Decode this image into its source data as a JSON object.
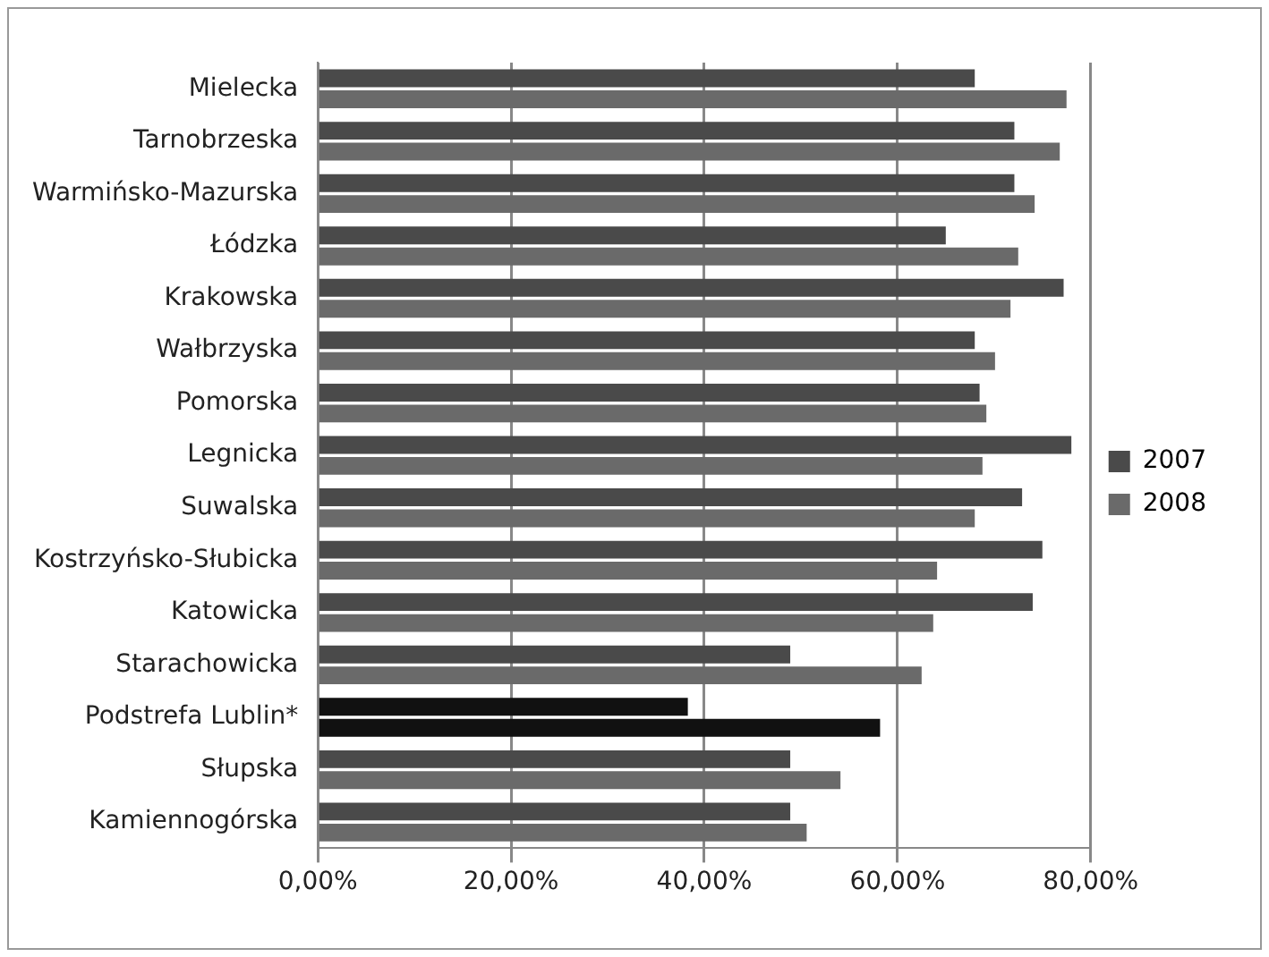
{
  "chart_data": {
    "type": "bar",
    "orientation": "horizontal",
    "categories": [
      "Mielecka",
      "Tarnobrzeska",
      "Warmińsko-Mazurska",
      "Łódzka",
      "Krakowska",
      "Wałbrzyska",
      "Pomorska",
      "Legnicka",
      "Suwalska",
      "Kostrzyńsko-Słubicka",
      "Katowicka",
      "Starachowicka",
      "Podstrefa Lublin*",
      "Słupska",
      "Kamiennogórska"
    ],
    "series": [
      {
        "name": "2007",
        "color": "#4a4a4a",
        "colors": [
          "#4a4a4a",
          "#4a4a4a",
          "#4a4a4a",
          "#4a4a4a",
          "#4a4a4a",
          "#4a4a4a",
          "#4a4a4a",
          "#4a4a4a",
          "#4a4a4a",
          "#4a4a4a",
          "#4a4a4a",
          "#4a4a4a",
          "#111111",
          "#4a4a4a",
          "#4a4a4a"
        ],
        "values": [
          68.0,
          72.1,
          72.1,
          65.0,
          77.2,
          68.0,
          68.5,
          78.0,
          72.9,
          75.0,
          74.0,
          48.9,
          38.3,
          48.9,
          48.9
        ]
      },
      {
        "name": "2008",
        "color": "#6a6a6a",
        "colors": [
          "#6a6a6a",
          "#6a6a6a",
          "#6a6a6a",
          "#6a6a6a",
          "#6a6a6a",
          "#6a6a6a",
          "#6a6a6a",
          "#6a6a6a",
          "#6a6a6a",
          "#6a6a6a",
          "#6a6a6a",
          "#6a6a6a",
          "#111111",
          "#6a6a6a",
          "#6a6a6a"
        ],
        "values": [
          77.5,
          76.8,
          74.2,
          72.5,
          71.7,
          70.1,
          69.2,
          68.8,
          68.0,
          64.1,
          63.7,
          62.5,
          58.2,
          54.1,
          50.6
        ]
      }
    ],
    "xlim": [
      0,
      80
    ],
    "xticks": [
      {
        "value": 0,
        "label": "0,00%"
      },
      {
        "value": 20,
        "label": "20,00%"
      },
      {
        "value": 40,
        "label": "40,00%"
      },
      {
        "value": 60,
        "label": "60,00%"
      },
      {
        "value": 80,
        "label": "80,00%"
      }
    ],
    "grid": "x",
    "legend": "right"
  }
}
